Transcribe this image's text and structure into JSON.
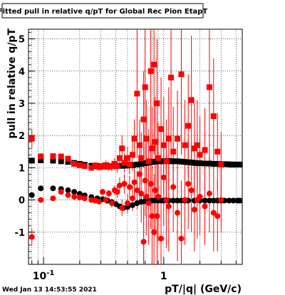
{
  "chart_data": {
    "type": "scatter",
    "title": "Fitted pull in relative q/pT  for Global Rec Pion EtapT",
    "xlabel": "pT/|q| (GeV/c)",
    "ylabel": "pull in relative q/pT",
    "x_scale": "log",
    "xlim": [
      0.075,
      4.5
    ],
    "ylim": [
      -2,
      5.3
    ],
    "x_ticks": [
      {
        "value": 0.1,
        "label": "10",
        "sup": "-1"
      },
      {
        "value": 1,
        "label": "1",
        "sup": ""
      }
    ],
    "y_ticks": [
      -1,
      0,
      1,
      2,
      3,
      4,
      5
    ],
    "grid": true,
    "series": [
      {
        "color": "#000000",
        "marker": "square",
        "points": [
          [
            0.08,
            1.22
          ],
          [
            0.095,
            1.23
          ],
          [
            0.12,
            1.22
          ],
          [
            0.14,
            1.2
          ],
          [
            0.16,
            1.18
          ],
          [
            0.18,
            1.15
          ],
          [
            0.2,
            1.12
          ],
          [
            0.22,
            1.09
          ],
          [
            0.25,
            1.06
          ],
          [
            0.28,
            1.05
          ],
          [
            0.31,
            1.04
          ],
          [
            0.34,
            1.04
          ],
          [
            0.37,
            1.05
          ],
          [
            0.4,
            1.05
          ],
          [
            0.43,
            1.06
          ],
          [
            0.46,
            1.06
          ],
          [
            0.5,
            1.07
          ],
          [
            0.55,
            1.08
          ],
          [
            0.6,
            1.1
          ],
          [
            0.65,
            1.12
          ],
          [
            0.7,
            1.14
          ],
          [
            0.75,
            1.16
          ],
          [
            0.8,
            1.18
          ],
          [
            0.85,
            1.19
          ],
          [
            0.9,
            1.2
          ],
          [
            0.95,
            1.2
          ],
          [
            1.0,
            1.2
          ],
          [
            1.05,
            1.21
          ],
          [
            1.1,
            1.21
          ],
          [
            1.15,
            1.2
          ],
          [
            1.2,
            1.2
          ],
          [
            1.3,
            1.2
          ],
          [
            1.4,
            1.19
          ],
          [
            1.5,
            1.18
          ],
          [
            1.6,
            1.17
          ],
          [
            1.7,
            1.16
          ],
          [
            1.8,
            1.15
          ],
          [
            1.9,
            1.14
          ],
          [
            2.0,
            1.14
          ],
          [
            2.2,
            1.13
          ],
          [
            2.4,
            1.13
          ],
          [
            2.6,
            1.12
          ],
          [
            2.8,
            1.12
          ],
          [
            3.0,
            1.11
          ],
          [
            3.2,
            1.11
          ],
          [
            3.4,
            1.11
          ],
          [
            3.6,
            1.1
          ],
          [
            3.8,
            1.1
          ],
          [
            4.0,
            1.1
          ],
          [
            4.3,
            1.1
          ]
        ]
      },
      {
        "color": "#000000",
        "marker": "circle",
        "points": [
          [
            0.08,
            0.15
          ],
          [
            0.095,
            0.36
          ],
          [
            0.12,
            0.36
          ],
          [
            0.14,
            0.34
          ],
          [
            0.16,
            0.3
          ],
          [
            0.18,
            0.25
          ],
          [
            0.2,
            0.19
          ],
          [
            0.22,
            0.14
          ],
          [
            0.25,
            0.09
          ],
          [
            0.28,
            0.05
          ],
          [
            0.31,
            0.02
          ],
          [
            0.34,
            -0.02
          ],
          [
            0.37,
            -0.07
          ],
          [
            0.4,
            -0.13
          ],
          [
            0.43,
            -0.2
          ],
          [
            0.46,
            -0.25
          ],
          [
            0.5,
            -0.22
          ],
          [
            0.55,
            -0.16
          ],
          [
            0.6,
            -0.1
          ],
          [
            0.65,
            -0.06
          ],
          [
            0.7,
            -0.04
          ],
          [
            0.75,
            -0.03
          ],
          [
            0.8,
            -0.02
          ],
          [
            0.85,
            -0.02
          ],
          [
            0.9,
            -0.02
          ],
          [
            0.95,
            -0.02
          ],
          [
            1.0,
            -0.02
          ],
          [
            1.1,
            -0.02
          ],
          [
            1.2,
            -0.02
          ],
          [
            1.3,
            -0.02
          ],
          [
            1.4,
            -0.02
          ],
          [
            1.5,
            -0.02
          ],
          [
            1.6,
            -0.02
          ],
          [
            1.8,
            -0.02
          ],
          [
            2.0,
            -0.02
          ],
          [
            2.2,
            -0.02
          ],
          [
            2.4,
            -0.02
          ],
          [
            2.6,
            -0.02
          ],
          [
            2.8,
            -0.02
          ],
          [
            3.0,
            -0.02
          ],
          [
            3.2,
            -0.02
          ],
          [
            3.5,
            -0.02
          ],
          [
            3.8,
            -0.02
          ],
          [
            4.1,
            -0.02
          ],
          [
            4.3,
            -0.02
          ]
        ]
      },
      {
        "color": "#ff0000",
        "marker": "square",
        "points": [
          [
            0.08,
            1.9,
            0.3
          ],
          [
            0.095,
            1.35,
            0.1
          ],
          [
            0.12,
            1.36,
            0.08
          ],
          [
            0.14,
            1.35,
            0.06
          ],
          [
            0.16,
            1.28,
            0.06
          ],
          [
            0.18,
            1.12,
            0.06
          ],
          [
            0.2,
            1.08,
            0.07
          ],
          [
            0.22,
            1.05,
            0.08
          ],
          [
            0.25,
            1.0,
            0.1
          ],
          [
            0.27,
            1.07,
            0.1
          ],
          [
            0.29,
            1.02,
            0.12
          ],
          [
            0.31,
            1.05,
            0.12
          ],
          [
            0.33,
            1.08,
            0.14
          ],
          [
            0.35,
            1.03,
            0.14
          ],
          [
            0.37,
            1.05,
            0.16
          ],
          [
            0.39,
            1.12,
            0.18
          ],
          [
            0.41,
            1.05,
            0.2
          ],
          [
            0.43,
            1.3,
            0.3
          ],
          [
            0.45,
            1.6,
            0.4
          ],
          [
            0.47,
            1.15,
            0.3
          ],
          [
            0.5,
            1.3,
            0.35
          ],
          [
            0.52,
            1.1,
            0.3
          ],
          [
            0.55,
            1.4,
            0.5
          ],
          [
            0.57,
            1.9,
            0.6
          ],
          [
            0.6,
            3.3,
            2.0
          ],
          [
            0.63,
            1.7,
            0.8
          ],
          [
            0.65,
            1.3,
            0.8
          ],
          [
            0.68,
            2.5,
            1.5
          ],
          [
            0.7,
            3.5,
            2.2
          ],
          [
            0.72,
            1.9,
            1.2
          ],
          [
            0.75,
            1.2,
            1.0
          ],
          [
            0.78,
            4.0,
            2.6
          ],
          [
            0.8,
            1.6,
            1.3
          ],
          [
            0.83,
            4.2,
            2.8
          ],
          [
            0.85,
            1.8,
            1.4
          ],
          [
            0.88,
            3.0,
            2.0
          ],
          [
            0.9,
            1.3,
            1.1
          ],
          [
            0.95,
            2.2,
            1.6
          ],
          [
            1.0,
            1.7,
            1.5
          ],
          [
            1.05,
            1.2,
            1.3
          ],
          [
            1.1,
            1.9,
            1.6
          ],
          [
            1.15,
            3.8,
            2.5
          ],
          [
            1.2,
            1.5,
            1.4
          ],
          [
            1.3,
            1.9,
            1.5
          ],
          [
            1.4,
            3.9,
            2.5
          ],
          [
            1.5,
            1.7,
            1.4
          ],
          [
            1.6,
            2.3,
            1.6
          ],
          [
            1.7,
            3.1,
            2.0
          ],
          [
            1.8,
            1.6,
            1.4
          ],
          [
            1.9,
            1.7,
            1.4
          ],
          [
            2.0,
            1.4,
            1.2
          ],
          [
            2.2,
            1.55,
            1.3
          ],
          [
            2.4,
            3.5,
            2.3
          ],
          [
            2.6,
            2.6,
            1.8
          ],
          [
            2.8,
            1.5,
            1.2
          ],
          [
            3.0,
            1.1,
            1.0
          ]
        ]
      },
      {
        "color": "#ff0000",
        "marker": "circle",
        "points": [
          [
            0.08,
            -1.15,
            0.25
          ],
          [
            0.095,
            0.0,
            0.08
          ],
          [
            0.12,
            0.05,
            0.07
          ],
          [
            0.14,
            0.25,
            0.06
          ],
          [
            0.16,
            0.15,
            0.06
          ],
          [
            0.18,
            0.1,
            0.06
          ],
          [
            0.2,
            0.08,
            0.06
          ],
          [
            0.22,
            0.05,
            0.07
          ],
          [
            0.25,
            0.0,
            0.08
          ],
          [
            0.27,
            -0.02,
            0.08
          ],
          [
            0.29,
            -0.05,
            0.1
          ],
          [
            0.31,
            0.25,
            0.1
          ],
          [
            0.33,
            0.0,
            0.12
          ],
          [
            0.35,
            0.2,
            0.12
          ],
          [
            0.37,
            -0.1,
            0.14
          ],
          [
            0.39,
            0.3,
            0.15
          ],
          [
            0.41,
            0.25,
            0.18
          ],
          [
            0.43,
            0.45,
            0.25
          ],
          [
            0.45,
            -0.25,
            0.25
          ],
          [
            0.47,
            0.5,
            0.3
          ],
          [
            0.5,
            -0.1,
            0.3
          ],
          [
            0.52,
            0.4,
            0.35
          ],
          [
            0.55,
            0.05,
            0.4
          ],
          [
            0.57,
            0.55,
            0.5
          ],
          [
            0.6,
            0.3,
            0.6
          ],
          [
            0.63,
            0.8,
            0.8
          ],
          [
            0.65,
            0.2,
            0.9
          ],
          [
            0.68,
            -1.3,
            1.5
          ],
          [
            0.7,
            0.6,
            1.1
          ],
          [
            0.72,
            0.1,
            1.2
          ],
          [
            0.75,
            -0.1,
            1.3
          ],
          [
            0.78,
            0.5,
            1.4
          ],
          [
            0.8,
            -0.5,
            1.5
          ],
          [
            0.83,
            -1.0,
            1.8
          ],
          [
            0.85,
            0.3,
            1.4
          ],
          [
            0.88,
            -0.5,
            1.6
          ],
          [
            0.9,
            0.1,
            1.4
          ],
          [
            0.95,
            -1.2,
            1.8
          ],
          [
            1.0,
            0.7,
            1.5
          ],
          [
            1.05,
            0.0,
            1.5
          ],
          [
            1.1,
            -0.2,
            1.4
          ],
          [
            1.2,
            0.4,
            1.4
          ],
          [
            1.3,
            -0.4,
            1.5
          ],
          [
            1.4,
            -1.2,
            1.8
          ],
          [
            1.5,
            0.0,
            1.4
          ],
          [
            1.6,
            0.5,
            1.4
          ],
          [
            1.7,
            0.3,
            1.3
          ],
          [
            1.8,
            -0.3,
            1.3
          ],
          [
            1.9,
            0.0,
            1.2
          ],
          [
            2.0,
            0.1,
            1.2
          ],
          [
            2.2,
            -0.2,
            1.2
          ],
          [
            2.4,
            0.2,
            1.2
          ],
          [
            2.6,
            -0.4,
            1.2
          ],
          [
            2.8,
            -0.5,
            1.1
          ],
          [
            3.0,
            0.0,
            1.0
          ]
        ]
      }
    ]
  },
  "footer": {
    "timestamp": "Wed Jan 13 14:53:55 2021"
  }
}
